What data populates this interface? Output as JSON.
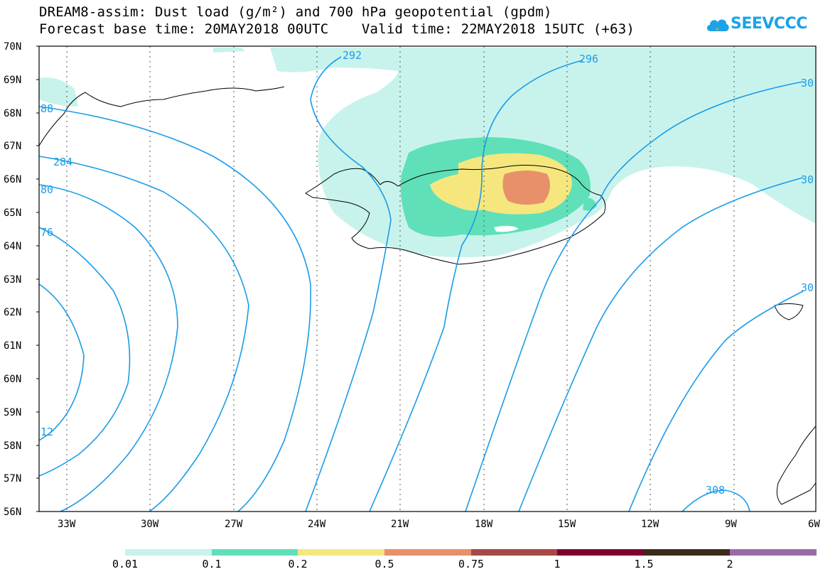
{
  "title": {
    "line1": "DREAM8-assim: Dust load (g/m²) and 700 hPa geopotential (gpdm)",
    "line2": "Forecast base time: 20MAY2018 00UTC    Valid time: 22MAY2018 15UTC (+63)"
  },
  "logo": {
    "text": "SEEVCCC",
    "icon": "cloud-icon",
    "color": "#1aa3e8"
  },
  "axes": {
    "lat_labels": [
      "70N",
      "69N",
      "68N",
      "67N",
      "66N",
      "65N",
      "64N",
      "63N",
      "62N",
      "61N",
      "60N",
      "59N",
      "58N",
      "57N",
      "56N"
    ],
    "lon_labels": [
      "33W",
      "30W",
      "27W",
      "24W",
      "21W",
      "18W",
      "15W",
      "12W",
      "9W",
      "6W"
    ]
  },
  "contour_labels": [
    "88",
    "284",
    "80",
    "76",
    "12",
    "292",
    "296",
    "30",
    "30",
    "30",
    "308"
  ],
  "colorbar": {
    "labels": [
      "0.01",
      "0.1",
      "0.2",
      "0.5",
      "0.75",
      "1",
      "1.5",
      "2"
    ],
    "colors": [
      "#c8f3ec",
      "#5fe0b8",
      "#f5e77e",
      "#e8906a",
      "#a84848",
      "#800030",
      "#3a2a1a",
      "#9a6aa8"
    ]
  },
  "colors": {
    "contour": "#1a9ce8",
    "dust_0_01": "#c8f3ec",
    "dust_0_1": "#5fe0b8",
    "dust_0_2": "#f5e77e",
    "dust_0_5": "#e8906a"
  }
}
